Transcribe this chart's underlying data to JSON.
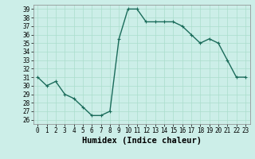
{
  "x": [
    0,
    1,
    2,
    3,
    4,
    5,
    6,
    7,
    8,
    9,
    10,
    11,
    12,
    13,
    14,
    15,
    16,
    17,
    18,
    19,
    20,
    21,
    22,
    23
  ],
  "y": [
    31,
    30,
    30.5,
    29,
    28.5,
    27.5,
    26.5,
    26.5,
    27,
    35.5,
    39,
    39,
    37.5,
    37.5,
    37.5,
    37.5,
    37,
    36,
    35,
    35.5,
    35,
    33,
    31,
    31
  ],
  "line_color": "#1a6b5a",
  "marker": "+",
  "markersize": 3,
  "linewidth": 1.0,
  "bg_color": "#cceee8",
  "grid_color": "#aaddcc",
  "xlabel": "Humidex (Indice chaleur)",
  "ylim": [
    26,
    39
  ],
  "xlim": [
    -0.5,
    23.5
  ],
  "yticks": [
    26,
    27,
    28,
    29,
    30,
    31,
    32,
    33,
    34,
    35,
    36,
    37,
    38,
    39
  ],
  "xticks": [
    0,
    1,
    2,
    3,
    4,
    5,
    6,
    7,
    8,
    9,
    10,
    11,
    12,
    13,
    14,
    15,
    16,
    17,
    18,
    19,
    20,
    21,
    22,
    23
  ],
  "tick_fontsize": 5.5,
  "xlabel_fontsize": 7.5
}
